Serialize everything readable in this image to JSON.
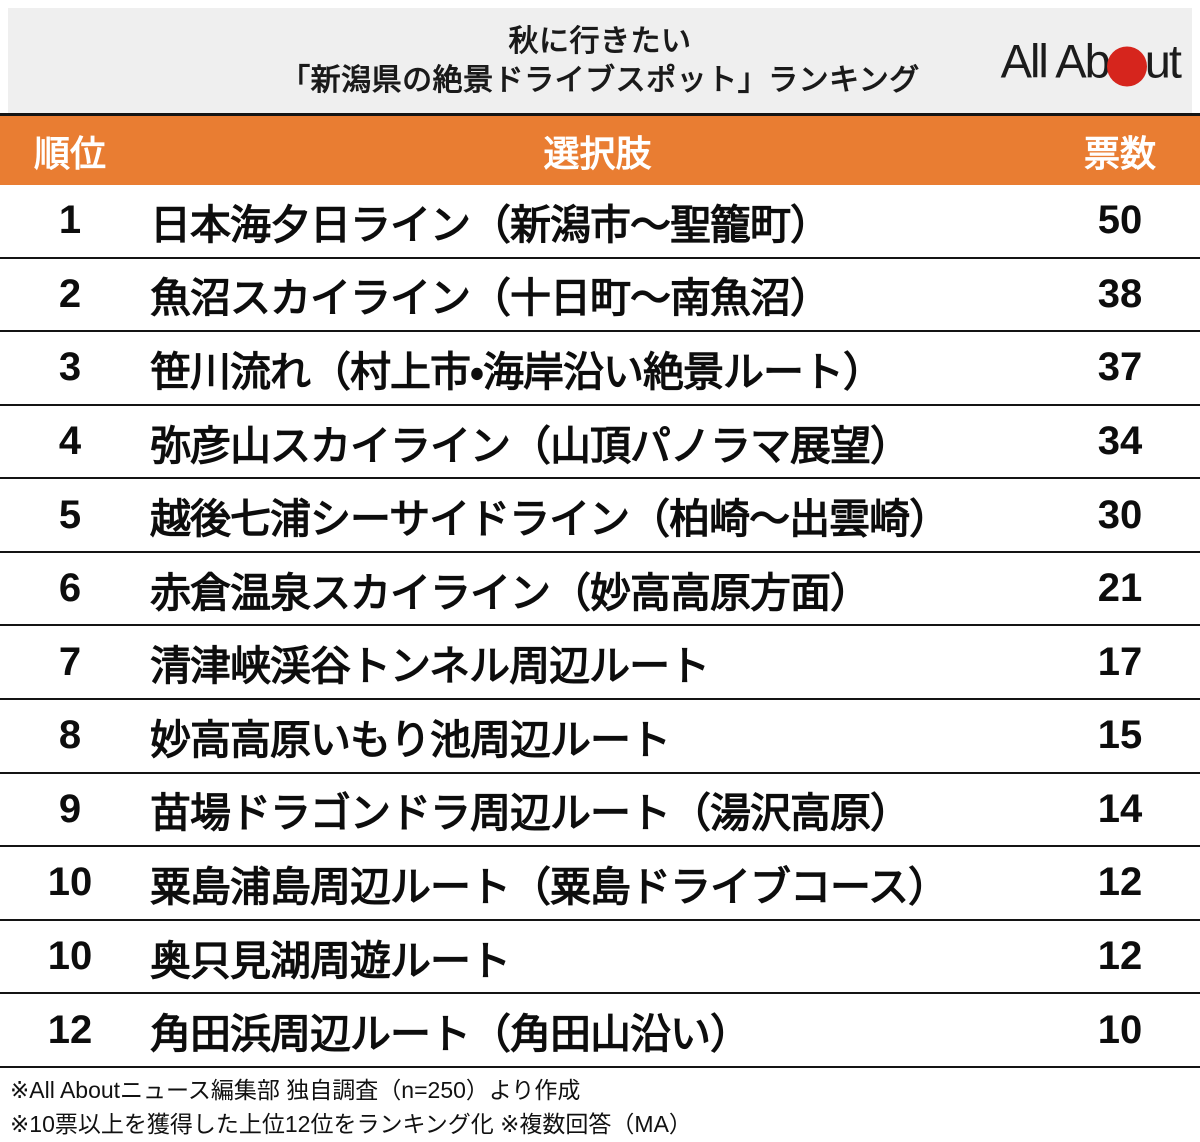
{
  "header": {
    "title_line1": "秋に行きたい",
    "title_line2": "「新潟県の絶景ドライブスポット」ランキング",
    "logo_text_left": "All Ab",
    "logo_text_right": "ut"
  },
  "table": {
    "columns": {
      "rank": "順位",
      "choice": "選択肢",
      "votes": "票数"
    },
    "rows": [
      {
        "rank": "1",
        "choice": "日本海夕日ライン（新潟市〜聖籠町）",
        "votes": "50"
      },
      {
        "rank": "2",
        "choice": "魚沼スカイライン（十日町〜南魚沼）",
        "votes": "38"
      },
      {
        "rank": "3",
        "choice": "笹川流れ（村上市・海岸沿い絶景ルート）",
        "votes": "37"
      },
      {
        "rank": "4",
        "choice": "弥彦山スカイライン（山頂パノラマ展望）",
        "votes": "34"
      },
      {
        "rank": "5",
        "choice": "越後七浦シーサイドライン（柏崎〜出雲崎）",
        "votes": "30"
      },
      {
        "rank": "6",
        "choice": "赤倉温泉スカイライン（妙高高原方面）",
        "votes": "21"
      },
      {
        "rank": "7",
        "choice": "清津峡渓谷トンネル周辺ルート",
        "votes": "17"
      },
      {
        "rank": "8",
        "choice": "妙高高原いもり池周辺ルート",
        "votes": "15"
      },
      {
        "rank": "9",
        "choice": "苗場ドラゴンドラ周辺ルート（湯沢高原）",
        "votes": "14"
      },
      {
        "rank": "10",
        "choice": "粟島浦島周辺ルート（粟島ドライブコース）",
        "votes": "12"
      },
      {
        "rank": "10",
        "choice": "奥只見湖周遊ルート",
        "votes": "12"
      },
      {
        "rank": "12",
        "choice": "角田浜周辺ルート（角田山沿い）",
        "votes": "10"
      }
    ]
  },
  "footer": {
    "note1": "※All Aboutニュース編集部 独自調査（n=250）より作成",
    "note2": "※10票以上を獲得した上位12位をランキング化 ※複数回答（MA）"
  },
  "colors": {
    "accent_orange": "#e97d32",
    "title_background": "#efefef",
    "logo_red": "#d6251d",
    "divider_black": "#141414"
  },
  "chart_data": {
    "type": "table",
    "title": "秋に行きたい「新潟県の絶景ドライブスポット」ランキング",
    "columns": [
      "順位",
      "選択肢",
      "票数"
    ],
    "rows": [
      [
        1,
        "日本海夕日ライン（新潟市〜聖籠町）",
        50
      ],
      [
        2,
        "魚沼スカイライン（十日町〜南魚沼）",
        38
      ],
      [
        3,
        "笹川流れ（村上市・海岸沿い絶景ルート）",
        37
      ],
      [
        4,
        "弥彦山スカイライン（山頂パノラマ展望）",
        34
      ],
      [
        5,
        "越後七浦シーサイドライン（柏崎〜出雲崎）",
        30
      ],
      [
        6,
        "赤倉温泉スカイライン（妙高高原方面）",
        21
      ],
      [
        7,
        "清津峡渓谷トンネル周辺ルート",
        17
      ],
      [
        8,
        "妙高高原いもり池周辺ルート",
        15
      ],
      [
        9,
        "苗場ドラゴンドラ周辺ルート（湯沢高原）",
        14
      ],
      [
        10,
        "粟島浦島周辺ルート（粟島ドライブコース）",
        12
      ],
      [
        10,
        "奥只見湖周遊ルート",
        12
      ],
      [
        12,
        "角田浜周辺ルート（角田山沿い）",
        10
      ]
    ],
    "source_notes": [
      "※All Aboutニュース編集部 独自調査（n=250）より作成",
      "※10票以上を獲得した上位12位をランキング化 ※複数回答（MA）"
    ]
  }
}
